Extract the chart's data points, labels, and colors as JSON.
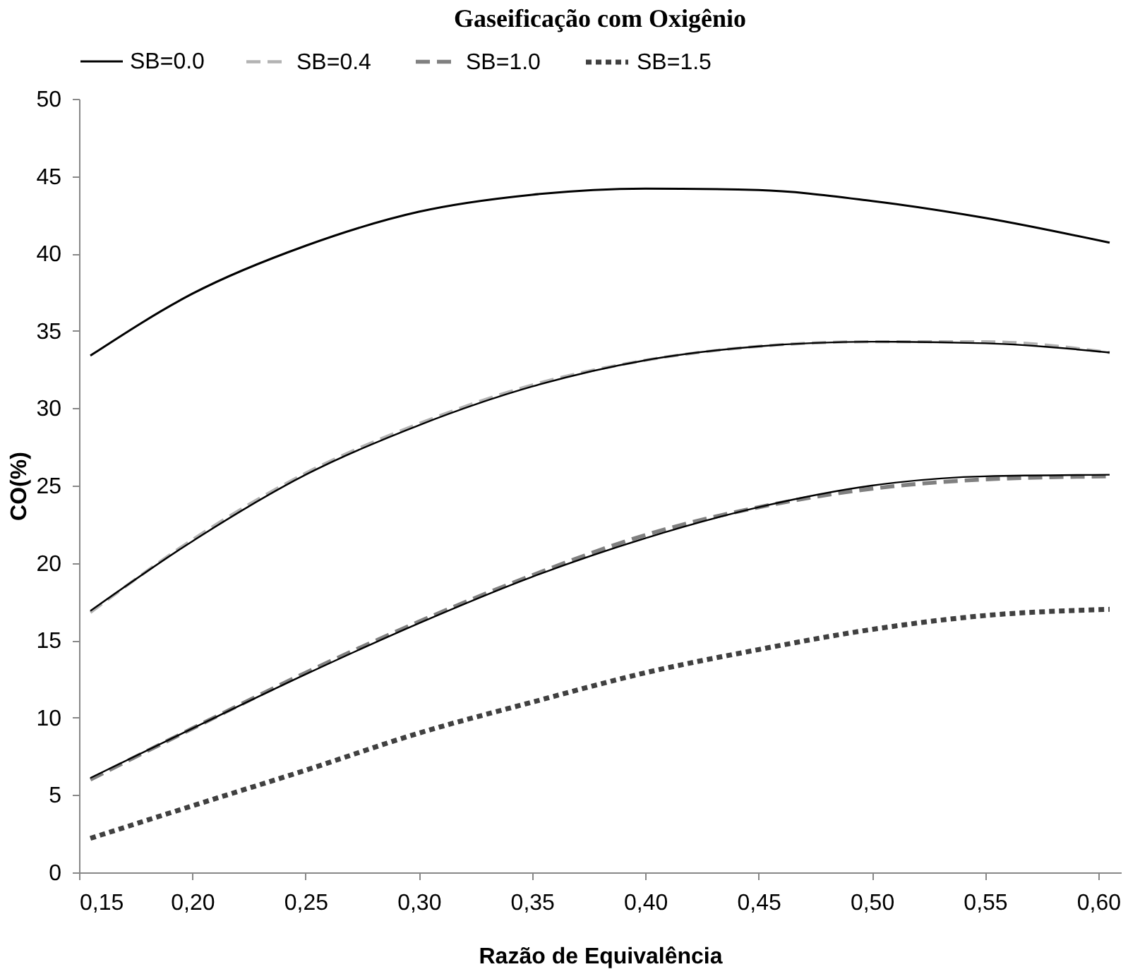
{
  "chart_data": {
    "type": "line",
    "title": "Gaseificação com Oxigênio",
    "xlabel": "Razão de Equivalência",
    "ylabel": "CO(%)",
    "x": [
      0.155,
      0.2,
      0.25,
      0.3,
      0.35,
      0.4,
      0.45,
      0.5,
      0.55,
      0.605
    ],
    "series": [
      {
        "name": "SB=0.0",
        "color": "#000000",
        "line_style": "solid",
        "values": [
          33.4,
          37.4,
          40.5,
          42.7,
          43.8,
          44.2,
          44.1,
          43.4,
          42.3,
          40.7
        ]
      },
      {
        "name": "SB=0.4",
        "color": "#b3b3b3",
        "line_style": "dashed",
        "values": [
          16.8,
          21.5,
          25.8,
          29.0,
          31.5,
          33.1,
          34.0,
          34.3,
          34.3,
          33.6
        ]
      },
      {
        "name": "SB=1.0",
        "color": "#808080",
        "line_style": "dashed",
        "values": [
          6.0,
          9.3,
          12.9,
          16.2,
          19.2,
          21.8,
          23.6,
          24.8,
          25.4,
          25.6
        ]
      },
      {
        "name": "SB=1.5",
        "color": "#404040",
        "line_style": "dotted",
        "values": [
          2.2,
          4.3,
          6.6,
          9.0,
          11.0,
          12.9,
          14.4,
          15.7,
          16.6,
          17.0
        ]
      },
      {
        "color": "#000000",
        "line_style": "solid",
        "values": [
          16.9,
          21.4,
          25.7,
          28.9,
          31.4,
          33.1,
          34.0,
          34.3,
          34.2,
          33.6
        ]
      },
      {
        "color": "#000000",
        "line_style": "solid",
        "values": [
          6.1,
          9.3,
          12.8,
          16.1,
          19.1,
          21.6,
          23.6,
          25.0,
          25.6,
          25.7
        ]
      }
    ],
    "xlim": [
      0.15,
      0.61
    ],
    "xticks": [
      {
        "value": 0.15,
        "label": "0,15"
      },
      {
        "value": 0.2,
        "label": "0,20"
      },
      {
        "value": 0.25,
        "label": "0,25"
      },
      {
        "value": 0.3,
        "label": "0,30"
      },
      {
        "value": 0.35,
        "label": "0,35"
      },
      {
        "value": 0.4,
        "label": "0,40"
      },
      {
        "value": 0.45,
        "label": "0,45"
      },
      {
        "value": 0.5,
        "label": "0,50"
      },
      {
        "value": 0.55,
        "label": "0,55"
      },
      {
        "value": 0.6,
        "label": "0,60"
      }
    ],
    "ylim": [
      0,
      50
    ],
    "yticks": [
      0,
      5,
      10,
      15,
      20,
      25,
      30,
      35,
      40,
      45,
      50
    ],
    "grid": false,
    "legend": "top",
    "marker": "none"
  }
}
